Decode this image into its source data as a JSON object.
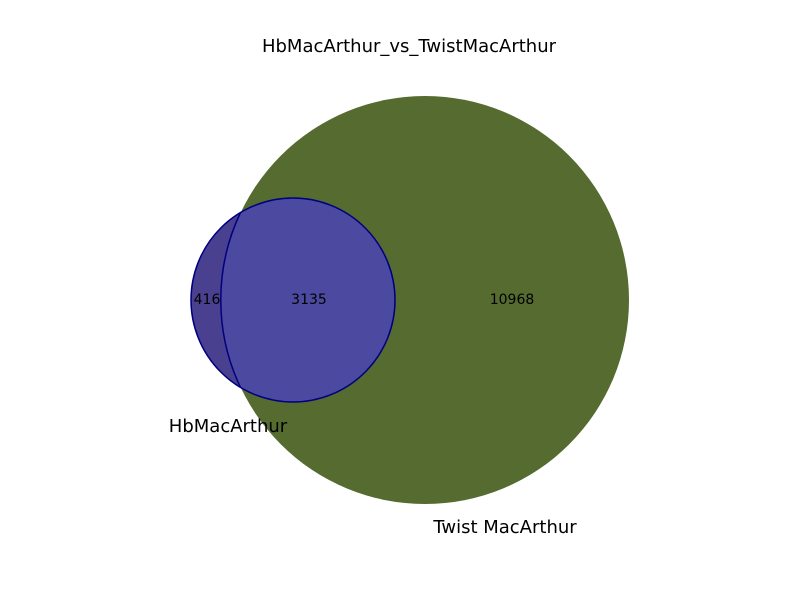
{
  "diagram": {
    "title": "HbMacArthur_vs_TwistMacArthur",
    "sets": [
      {
        "name": "HbMacArthur",
        "color": "#49408f"
      },
      {
        "name": "Twist MacArthur",
        "color": "#556b2f"
      }
    ],
    "overlap_color": "#4c4aa0",
    "outline_color": "#000080",
    "regions": {
      "only_a": "416",
      "both": "3135",
      "only_b": "10968"
    }
  }
}
